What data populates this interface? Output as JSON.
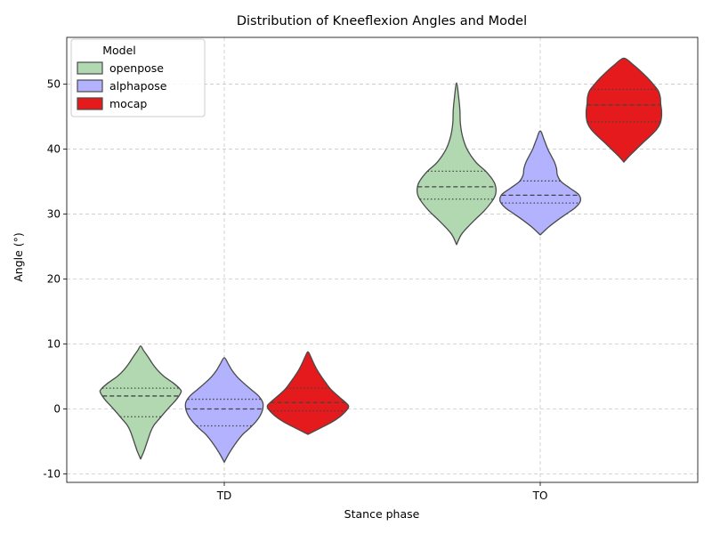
{
  "chart_data": {
    "type": "violin",
    "title": "Distribution of Kneeflexion Angles and Model",
    "xlabel": "Stance phase",
    "ylabel": "Angle (°)",
    "categories": [
      "TD",
      "TO"
    ],
    "ylim": [
      -11.3,
      57.2
    ],
    "yticks": [
      -10,
      0,
      10,
      20,
      30,
      40,
      50
    ],
    "grid": true,
    "legend": {
      "title": "Model",
      "position": "upper-left"
    },
    "series": [
      {
        "name": "openpose",
        "color": "#b2d8b2",
        "violins": [
          {
            "category": "TD",
            "min": -7.7,
            "max": 9.7,
            "q1": -1.2,
            "median": 2.0,
            "q3": 3.2,
            "profile": [
              [
                -7.7,
                0
              ],
              [
                -6.5,
                0.08
              ],
              [
                -5,
                0.16
              ],
              [
                -3.5,
                0.24
              ],
              [
                -2.5,
                0.32
              ],
              [
                -1.5,
                0.45
              ],
              [
                -0.5,
                0.58
              ],
              [
                0.5,
                0.72
              ],
              [
                1.5,
                0.86
              ],
              [
                2.5,
                0.96
              ],
              [
                3,
                0.95
              ],
              [
                4,
                0.78
              ],
              [
                5,
                0.56
              ],
              [
                6,
                0.4
              ],
              [
                7,
                0.28
              ],
              [
                8,
                0.18
              ],
              [
                9,
                0.07
              ],
              [
                9.7,
                0
              ]
            ]
          },
          {
            "category": "TO",
            "min": 25.3,
            "max": 50.2,
            "q1": 32.3,
            "median": 34.2,
            "q3": 36.6,
            "profile": [
              [
                25.3,
                0
              ],
              [
                27,
                0.13
              ],
              [
                29,
                0.42
              ],
              [
                30.5,
                0.66
              ],
              [
                32,
                0.85
              ],
              [
                33,
                0.93
              ],
              [
                34,
                0.94
              ],
              [
                35,
                0.89
              ],
              [
                36.5,
                0.71
              ],
              [
                38,
                0.46
              ],
              [
                40,
                0.25
              ],
              [
                42,
                0.14
              ],
              [
                44,
                0.09
              ],
              [
                46,
                0.08
              ],
              [
                48,
                0.05
              ],
              [
                50.2,
                0
              ]
            ]
          }
        ]
      },
      {
        "name": "alphapose",
        "color": "#b2b2ff",
        "violins": [
          {
            "category": "TD",
            "min": -8.2,
            "max": 7.9,
            "q1": -2.6,
            "median": 0.0,
            "q3": 1.5,
            "profile": [
              [
                -8.2,
                0
              ],
              [
                -7,
                0.1
              ],
              [
                -5.5,
                0.25
              ],
              [
                -4,
                0.43
              ],
              [
                -3,
                0.6
              ],
              [
                -2,
                0.75
              ],
              [
                -1,
                0.86
              ],
              [
                0,
                0.92
              ],
              [
                1,
                0.92
              ],
              [
                2,
                0.82
              ],
              [
                3,
                0.64
              ],
              [
                4,
                0.46
              ],
              [
                5,
                0.3
              ],
              [
                6,
                0.18
              ],
              [
                7,
                0.09
              ],
              [
                7.9,
                0
              ]
            ]
          },
          {
            "category": "TO",
            "min": 26.8,
            "max": 42.8,
            "q1": 31.7,
            "median": 32.9,
            "q3": 35.1,
            "profile": [
              [
                26.8,
                0
              ],
              [
                28,
                0.2
              ],
              [
                29,
                0.4
              ],
              [
                30,
                0.62
              ],
              [
                31,
                0.84
              ],
              [
                32,
                0.96
              ],
              [
                33,
                0.92
              ],
              [
                34,
                0.71
              ],
              [
                35,
                0.5
              ],
              [
                36,
                0.41
              ],
              [
                37,
                0.39
              ],
              [
                38,
                0.34
              ],
              [
                39,
                0.26
              ],
              [
                40,
                0.18
              ],
              [
                41.5,
                0.09
              ],
              [
                42.8,
                0
              ]
            ]
          }
        ]
      },
      {
        "name": "mocap",
        "color": "#e41a1c",
        "violins": [
          {
            "category": "TD",
            "min": -3.9,
            "max": 8.8,
            "q1": -0.3,
            "median": 1.0,
            "q3": 3.2,
            "profile": [
              [
                -3.9,
                0
              ],
              [
                -3,
                0.28
              ],
              [
                -2,
                0.58
              ],
              [
                -1,
                0.8
              ],
              [
                0,
                0.95
              ],
              [
                0.5,
                0.97
              ],
              [
                1,
                0.9
              ],
              [
                2,
                0.72
              ],
              [
                3,
                0.55
              ],
              [
                4,
                0.43
              ],
              [
                5,
                0.32
              ],
              [
                6,
                0.22
              ],
              [
                7,
                0.14
              ],
              [
                8,
                0.07
              ],
              [
                8.8,
                0
              ]
            ]
          },
          {
            "category": "TO",
            "min": 38.0,
            "max": 54.0,
            "q1": 44.2,
            "median": 46.8,
            "q3": 49.2,
            "profile": [
              [
                38,
                0
              ],
              [
                39,
                0.14
              ],
              [
                40,
                0.3
              ],
              [
                41,
                0.46
              ],
              [
                42,
                0.63
              ],
              [
                43,
                0.78
              ],
              [
                44,
                0.87
              ],
              [
                45,
                0.9
              ],
              [
                46,
                0.9
              ],
              [
                47,
                0.88
              ],
              [
                48,
                0.87
              ],
              [
                49,
                0.82
              ],
              [
                50,
                0.7
              ],
              [
                51,
                0.56
              ],
              [
                52,
                0.4
              ],
              [
                53,
                0.22
              ],
              [
                54,
                0
              ]
            ]
          }
        ]
      }
    ]
  }
}
